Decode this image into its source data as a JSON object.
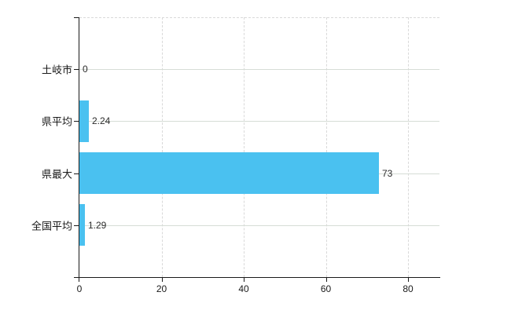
{
  "chart_data": {
    "type": "bar",
    "orientation": "horizontal",
    "title": "",
    "xlabel": "",
    "ylabel": "",
    "categories": [
      "土岐市",
      "県平均",
      "県最大",
      "全国平均"
    ],
    "values": [
      0,
      2.24,
      73,
      1.29
    ],
    "value_labels": [
      "0",
      "2.24",
      "73",
      "1.29"
    ],
    "x_ticks": [
      0,
      20,
      40,
      60,
      80
    ],
    "x_tick_labels": [
      "0",
      "20",
      "40",
      "60",
      "80"
    ],
    "xlim": [
      0,
      87.7
    ],
    "grid": true,
    "legend": false,
    "bar_color": "#4ac1f0",
    "axis_color": "#1a1a1a",
    "horizontal_gridline_color": "#d6ddd6",
    "vertical_gridline_color": "#d9d9d9",
    "background_color": "#ffffff"
  }
}
